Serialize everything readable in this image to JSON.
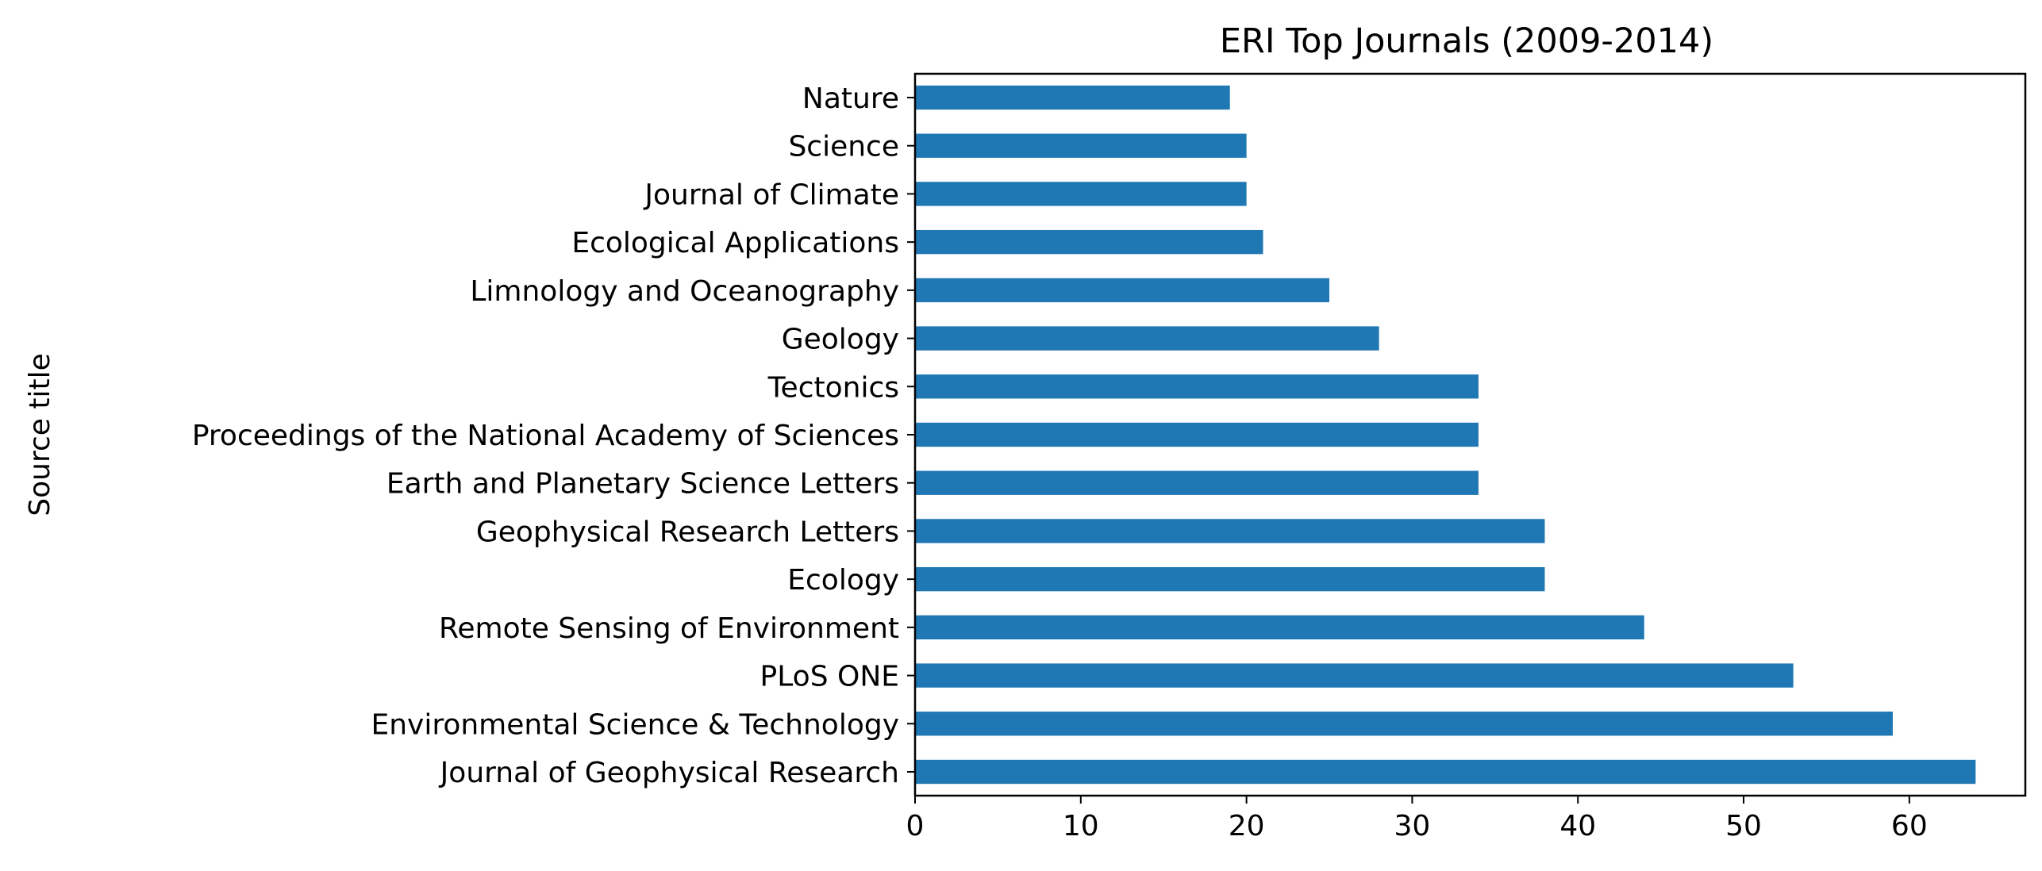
{
  "chart_data": {
    "type": "bar",
    "orientation": "horizontal",
    "title": "ERI Top Journals (2009-2014)",
    "xlabel": "",
    "ylabel": "Source title",
    "categories": [
      "Nature",
      "Science",
      "Journal of Climate",
      "Ecological Applications",
      "Limnology and Oceanography",
      "Geology",
      "Tectonics",
      "Proceedings of the National Academy of Sciences",
      "Earth and Planetary Science Letters",
      "Geophysical Research Letters",
      "Ecology",
      "Remote Sensing of Environment",
      "PLoS ONE",
      "Environmental Science & Technology",
      "Journal of Geophysical Research"
    ],
    "values": [
      19,
      20,
      20,
      21,
      25,
      28,
      34,
      34,
      34,
      38,
      38,
      44,
      53,
      59,
      64
    ],
    "xlim": [
      0,
      67
    ],
    "xticks": [
      0,
      10,
      20,
      30,
      40,
      50,
      60
    ],
    "grid": false,
    "legend": "none",
    "bar_color": "#1f77b4"
  }
}
